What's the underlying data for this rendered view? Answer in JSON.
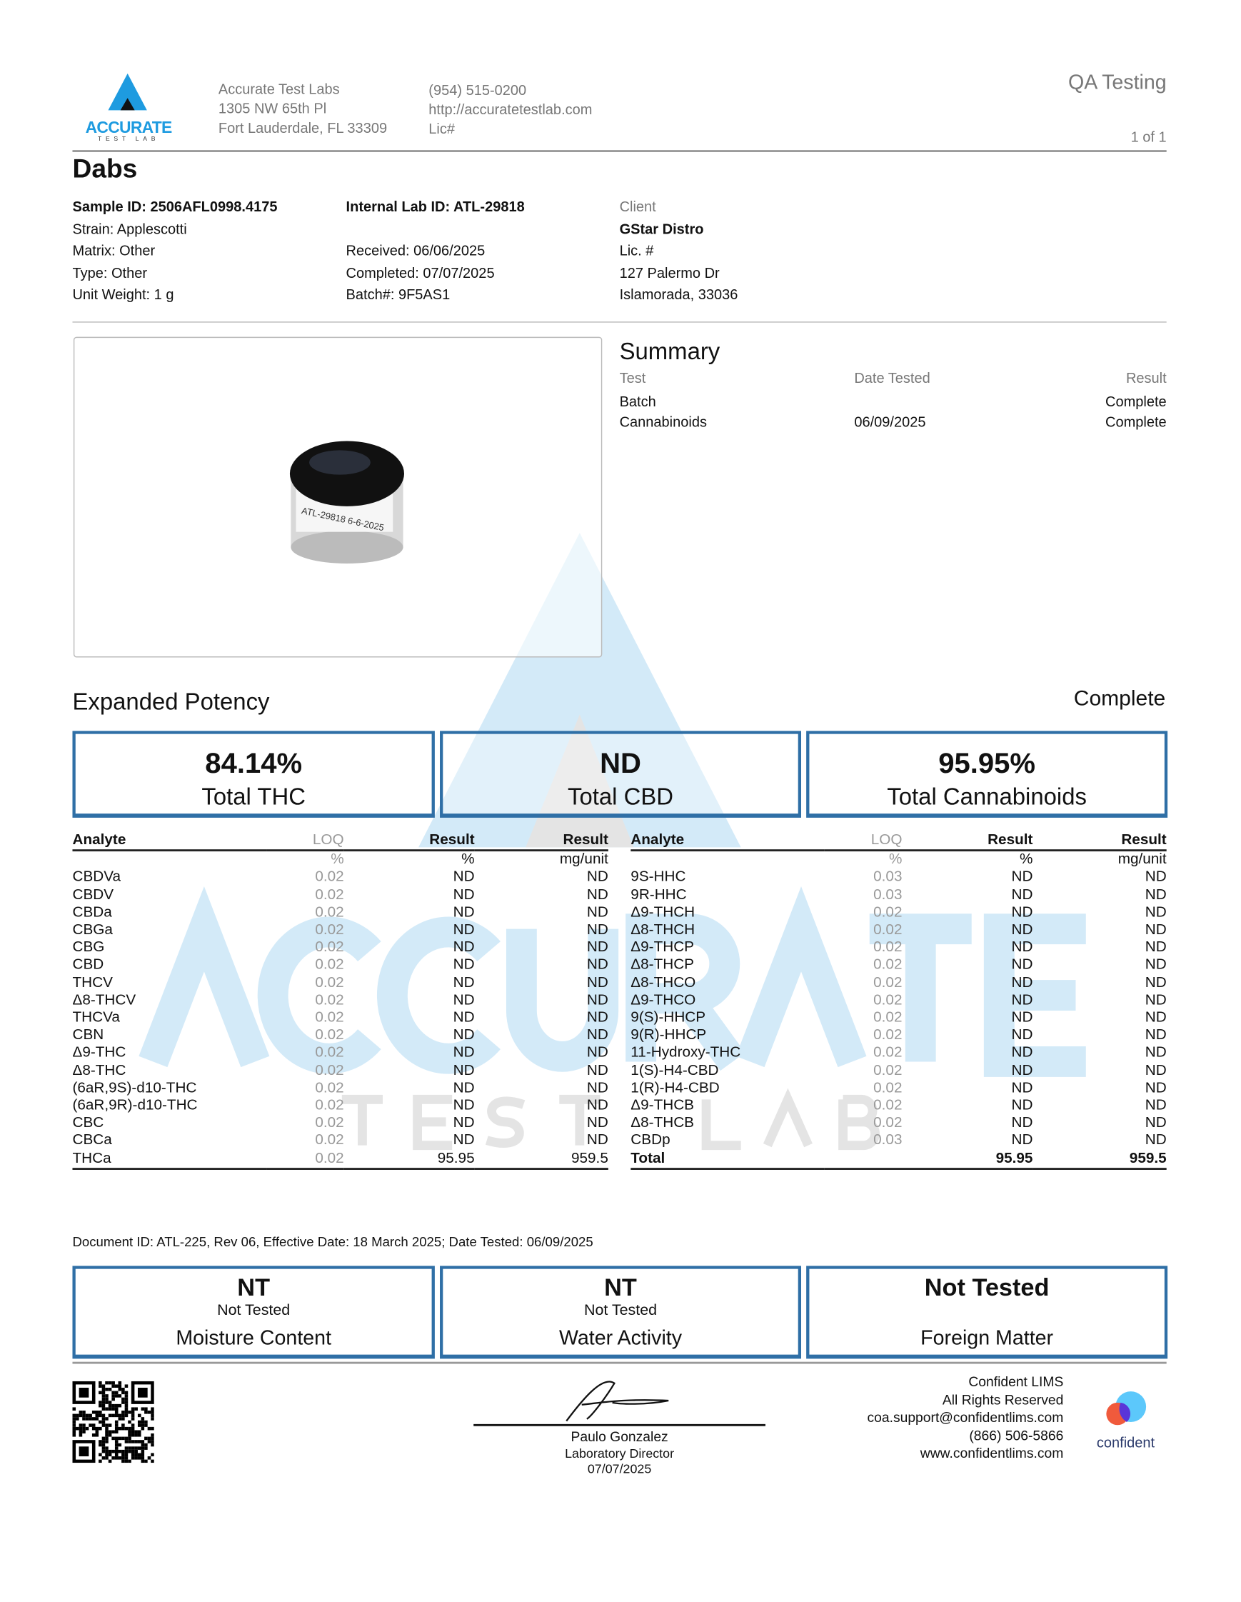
{
  "header": {
    "logo": {
      "text": "ACCURATE",
      "subtext": "TEST LAB",
      "color": "#1e9be0"
    },
    "lab_name": "Accurate Test Labs",
    "address1": "1305 NW 65th Pl",
    "address2": "Fort Lauderdale, FL 33309",
    "phone": "(954) 515-0200",
    "website": "http://accuratetestlab.com",
    "license": "Lic#",
    "doc_type": "QA Testing",
    "page": "1 of 1"
  },
  "product": {
    "name": "Dabs",
    "sample_id": "Sample ID: 2506AFL0998.4175",
    "strain": "Strain: Applescotti",
    "matrix": "Matrix: Other",
    "type": "Type: Other",
    "unit_weight": "Unit Weight: 1 g",
    "internal_lab_id": "Internal Lab ID: ATL-29818",
    "received": "Received: 06/06/2025",
    "completed": "Completed: 07/07/2025",
    "batch": "Batch#: 9F5AS1",
    "client_label": "Client",
    "client_name": "GStar Distro",
    "client_lic": "Lic. #",
    "client_address1": "127 Palermo Dr",
    "client_address2": "Islamorada, 33036",
    "jar_label": "ATL-29818 6-6-2025"
  },
  "summary": {
    "title": "Summary",
    "headers": [
      "Test",
      "Date Tested",
      "Result"
    ],
    "rows": [
      {
        "test": "Batch",
        "date": "",
        "result": "Complete"
      },
      {
        "test": "Cannabinoids",
        "date": "06/09/2025",
        "result": "Complete"
      }
    ]
  },
  "potency": {
    "title": "Expanded Potency",
    "status": "Complete",
    "totals": [
      {
        "value": "84.14%",
        "label": "Total THC"
      },
      {
        "value": "ND",
        "label": "Total CBD"
      },
      {
        "value": "95.95%",
        "label": "Total Cannabinoids"
      }
    ],
    "headers": {
      "analyte": "Analyte",
      "loq": "LOQ",
      "result": "Result"
    },
    "units": {
      "loq": "%",
      "result_pct": "%",
      "result_mg": "mg/unit"
    },
    "left": [
      [
        "CBDVa",
        "0.02",
        "ND",
        "ND"
      ],
      [
        "CBDV",
        "0.02",
        "ND",
        "ND"
      ],
      [
        "CBDa",
        "0.02",
        "ND",
        "ND"
      ],
      [
        "CBGa",
        "0.02",
        "ND",
        "ND"
      ],
      [
        "CBG",
        "0.02",
        "ND",
        "ND"
      ],
      [
        "CBD",
        "0.02",
        "ND",
        "ND"
      ],
      [
        "THCV",
        "0.02",
        "ND",
        "ND"
      ],
      [
        "Δ8-THCV",
        "0.02",
        "ND",
        "ND"
      ],
      [
        "THCVa",
        "0.02",
        "ND",
        "ND"
      ],
      [
        "CBN",
        "0.02",
        "ND",
        "ND"
      ],
      [
        "Δ9-THC",
        "0.02",
        "ND",
        "ND"
      ],
      [
        "Δ8-THC",
        "0.02",
        "ND",
        "ND"
      ],
      [
        "(6aR,9S)-d10-THC",
        "0.02",
        "ND",
        "ND"
      ],
      [
        "(6aR,9R)-d10-THC",
        "0.02",
        "ND",
        "ND"
      ],
      [
        "CBC",
        "0.02",
        "ND",
        "ND"
      ],
      [
        "CBCa",
        "0.02",
        "ND",
        "ND"
      ],
      [
        "THCa",
        "0.02",
        "95.95",
        "959.5"
      ]
    ],
    "right": [
      [
        "9S-HHC",
        "0.03",
        "ND",
        "ND"
      ],
      [
        "9R-HHC",
        "0.03",
        "ND",
        "ND"
      ],
      [
        "Δ9-THCH",
        "0.02",
        "ND",
        "ND"
      ],
      [
        "Δ8-THCH",
        "0.02",
        "ND",
        "ND"
      ],
      [
        "Δ9-THCP",
        "0.02",
        "ND",
        "ND"
      ],
      [
        "Δ8-THCP",
        "0.02",
        "ND",
        "ND"
      ],
      [
        "Δ8-THCO",
        "0.02",
        "ND",
        "ND"
      ],
      [
        "Δ9-THCO",
        "0.02",
        "ND",
        "ND"
      ],
      [
        "9(S)-HHCP",
        "0.02",
        "ND",
        "ND"
      ],
      [
        "9(R)-HHCP",
        "0.02",
        "ND",
        "ND"
      ],
      [
        "11-Hydroxy-THC",
        "0.02",
        "ND",
        "ND"
      ],
      [
        "1(S)-H4-CBD",
        "0.02",
        "ND",
        "ND"
      ],
      [
        "1(R)-H4-CBD",
        "0.02",
        "ND",
        "ND"
      ],
      [
        "Δ9-THCB",
        "0.02",
        "ND",
        "ND"
      ],
      [
        "Δ8-THCB",
        "0.02",
        "ND",
        "ND"
      ],
      [
        "CBDp",
        "0.03",
        "ND",
        "ND"
      ],
      [
        "Total",
        "",
        "95.95",
        "959.5"
      ]
    ]
  },
  "document_id": "Document ID: ATL-225, Rev 06, Effective Date: 18 March 2025; Date Tested: 06/09/2025",
  "other_tests": [
    {
      "value": "NT",
      "sub": "Not Tested",
      "label": "Moisture Content"
    },
    {
      "value": "NT",
      "sub": "Not Tested",
      "label": "Water Activity"
    },
    {
      "value": "Not Tested",
      "sub": "",
      "label": "Foreign Matter"
    }
  ],
  "signature": {
    "name": "Paulo Gonzalez",
    "title": "Laboratory Director",
    "date": "07/07/2025"
  },
  "confident": {
    "lines": [
      "Confident LIMS",
      "All Rights Reserved",
      "coa.support@confidentlims.com",
      "(866) 506-5866",
      "www.confidentlims.com"
    ],
    "logo_text": "confident"
  },
  "colors": {
    "accent": "#2f6fa6",
    "brand": "#1e9be0",
    "watermark": "#d3eaf8"
  }
}
